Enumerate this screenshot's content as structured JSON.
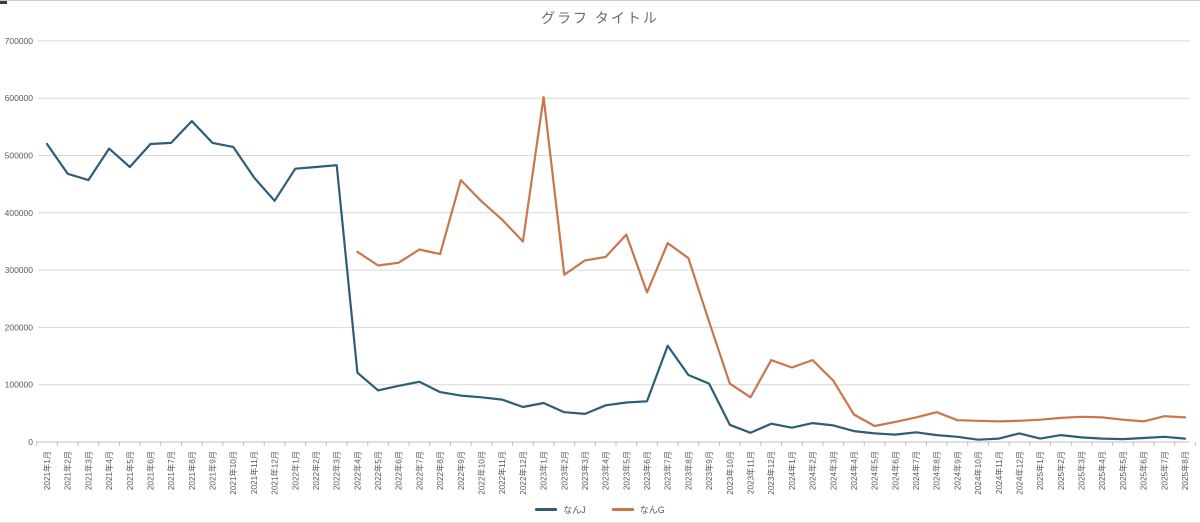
{
  "chart": {
    "title": "グラフ タイトル"
  },
  "chart_data": {
    "type": "line",
    "title": "グラフ タイトル",
    "grid": "horizontal",
    "legend_position": "bottom",
    "ylim": [
      0,
      700000
    ],
    "ytick_step": 100000,
    "ytick_labels": [
      "0",
      "100000",
      "200000",
      "300000",
      "400000",
      "500000",
      "600000",
      "700000"
    ],
    "colors": {
      "series_nanj": "#2e5d77",
      "series_nang": "#c9764a",
      "gridline": "#d9d9d9",
      "axis": "#bfbfbf",
      "tick_text": "#595959",
      "title_text": "#6a6a6a"
    },
    "categories": [
      "2021年1月",
      "2021年2月",
      "2021年3月",
      "2021年4月",
      "2021年5月",
      "2021年6月",
      "2021年7月",
      "2021年8月",
      "2021年9月",
      "2021年10月",
      "2021年11月",
      "2021年12月",
      "2022年1月",
      "2022年2月",
      "2022年3月",
      "2022年4月",
      "2022年5月",
      "2022年6月",
      "2022年7月",
      "2022年8月",
      "2022年9月",
      "2022年10月",
      "2022年11月",
      "2022年12月",
      "2023年1月",
      "2023年2月",
      "2023年3月",
      "2023年4月",
      "2023年5月",
      "2023年6月",
      "2023年7月",
      "2023年8月",
      "2023年9月",
      "2023年10月",
      "2023年11月",
      "2023年12月",
      "2024年1月",
      "2024年2月",
      "2024年3月",
      "2024年4月",
      "2024年5月",
      "2024年6月",
      "2024年7月",
      "2024年8月",
      "2024年9月",
      "2024年10月",
      "2024年11月",
      "2024年12月",
      "2025年1月",
      "2025年2月",
      "2025年3月",
      "2025年4月",
      "2025年5月",
      "2025年6月",
      "2025年7月",
      "2025年8月"
    ],
    "series": [
      {
        "name": "なんJ",
        "color": "#2e5d77",
        "values": [
          520000,
          468000,
          457000,
          512000,
          480000,
          520000,
          522000,
          560000,
          522000,
          515000,
          462000,
          421000,
          477000,
          480000,
          483000,
          121000,
          90000,
          98000,
          105000,
          87000,
          81000,
          78000,
          74000,
          61000,
          68000,
          52000,
          49000,
          64000,
          69000,
          71000,
          168000,
          117000,
          102000,
          30000,
          16000,
          32000,
          25000,
          33000,
          29000,
          19000,
          15000,
          13000,
          17000,
          12000,
          9000,
          4000,
          6000,
          15000,
          6000,
          12000,
          8000,
          6000,
          5000,
          7000,
          9000,
          6000
        ]
      },
      {
        "name": "なんG",
        "color": "#c9764a",
        "values": [
          null,
          null,
          null,
          null,
          null,
          null,
          null,
          null,
          null,
          null,
          null,
          null,
          null,
          null,
          null,
          332000,
          308000,
          313000,
          336000,
          328000,
          457000,
          420000,
          388000,
          350000,
          602000,
          292000,
          317000,
          323000,
          362000,
          261000,
          347000,
          321000,
          210000,
          102000,
          78000,
          143000,
          130000,
          143000,
          107000,
          48000,
          28000,
          35000,
          43000,
          52000,
          38000,
          37000,
          36000,
          37000,
          39000,
          42000,
          44000,
          43000,
          39000,
          36000,
          45000,
          43000
        ]
      }
    ]
  }
}
